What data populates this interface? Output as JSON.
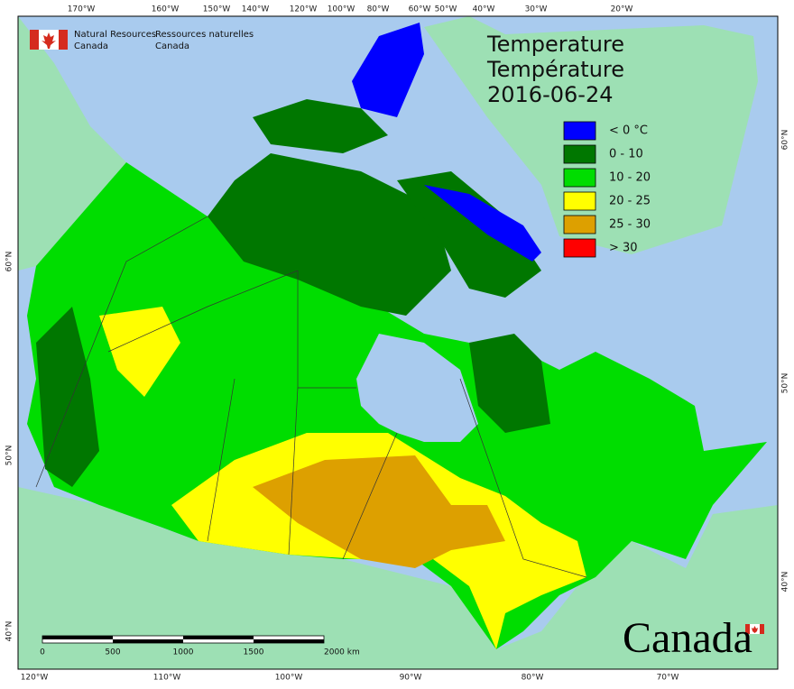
{
  "header": {
    "org_en": [
      "Natural Resources",
      "Canada"
    ],
    "org_fr": [
      "Ressources naturelles",
      "Canada"
    ]
  },
  "title": [
    "Temperature",
    "Température",
    "2016-06-24"
  ],
  "legend": [
    {
      "label": "< 0 °C",
      "color": "#0000ff"
    },
    {
      "label": "0 - 10",
      "color": "#007700"
    },
    {
      "label": "10 - 20",
      "color": "#00dd00"
    },
    {
      "label": "20 - 25",
      "color": "#ffff00"
    },
    {
      "label": "25 - 30",
      "color": "#dda000"
    },
    {
      "label": "> 30",
      "color": "#ff0000"
    }
  ],
  "graticule": {
    "top": [
      "170°W",
      "160°W",
      "150°W",
      "140°W",
      "120°W",
      "100°W",
      "80°W",
      "60°W",
      "50°W",
      "40°W",
      "30°W",
      "20°W"
    ],
    "bottom": [
      "120°W",
      "110°W",
      "100°W",
      "90°W",
      "80°W",
      "70°W"
    ],
    "left": [
      "60°N",
      "50°N",
      "40°N"
    ],
    "right": [
      "60°N",
      "50°N",
      "40°N"
    ]
  },
  "scale_bar": [
    "0",
    "500",
    "1000",
    "1500",
    "2000 km"
  ],
  "wordmark": "Canada"
}
